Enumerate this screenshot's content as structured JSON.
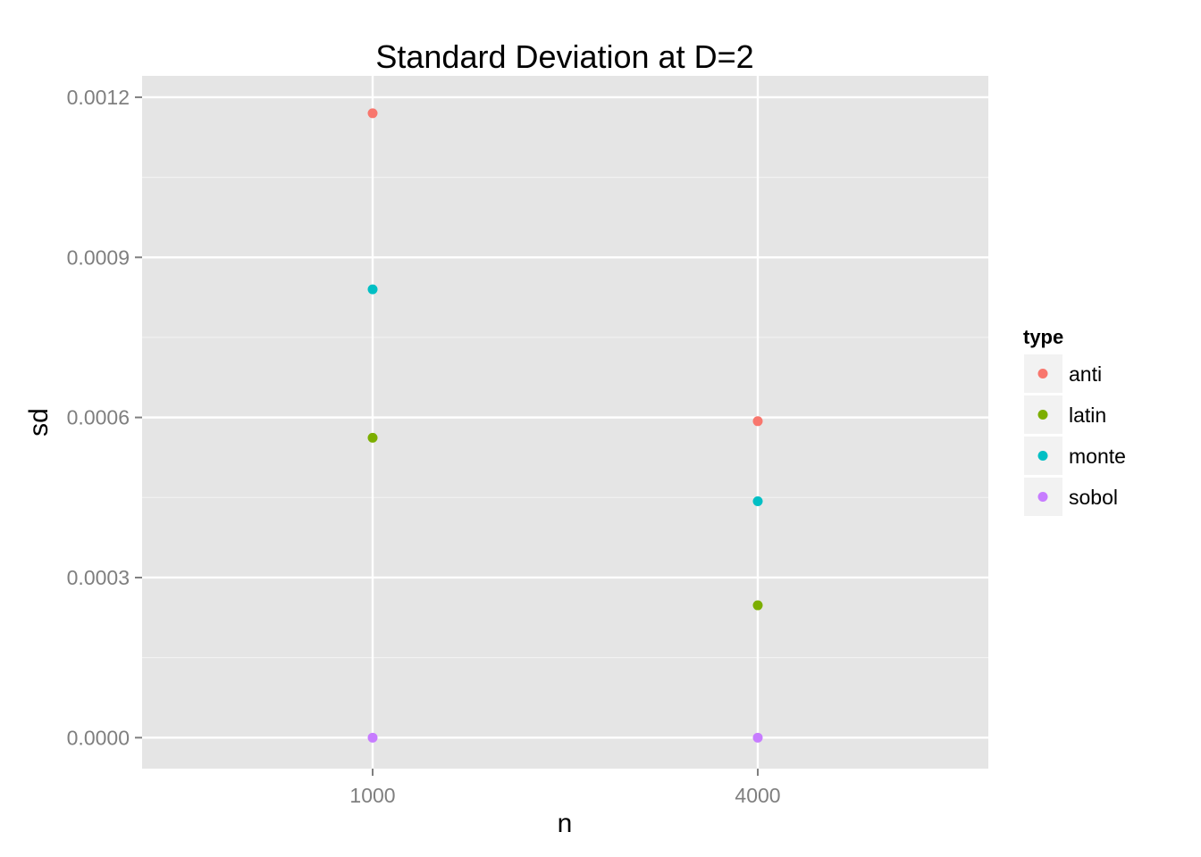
{
  "chart_data": {
    "type": "scatter",
    "title": "Standard Deviation at D=2",
    "xlabel": "n",
    "ylabel": "sd",
    "categories": [
      "1000",
      "4000"
    ],
    "ylim": [
      -5.8e-05,
      0.00124
    ],
    "yticks": [
      "0.0000",
      "0.0003",
      "0.0006",
      "0.0009",
      "0.0012"
    ],
    "ytick_values": [
      0,
      0.0003,
      0.0006,
      0.0009,
      0.0012
    ],
    "grid": true,
    "legend": {
      "title": "type",
      "position": "right"
    },
    "series": [
      {
        "name": "anti",
        "color": "#F8766D",
        "values": [
          0.00117,
          0.000593
        ]
      },
      {
        "name": "latin",
        "color": "#7CAE00",
        "values": [
          0.000562,
          0.000248
        ]
      },
      {
        "name": "monte",
        "color": "#00BFC4",
        "values": [
          0.00084,
          0.000443
        ]
      },
      {
        "name": "sobol",
        "color": "#C77CFF",
        "values": [
          0.0,
          0.0
        ]
      }
    ]
  }
}
